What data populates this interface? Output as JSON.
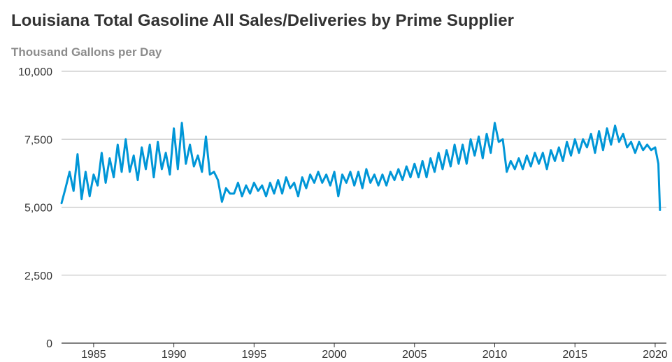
{
  "chart_data": {
    "type": "line",
    "title": "Louisiana Total Gasoline All Sales/Deliveries by Prime Supplier",
    "ylabel": "Thousand Gallons per Day",
    "xlabel": "",
    "ylim": [
      0,
      10000
    ],
    "xlim": [
      1983.0,
      2020.7
    ],
    "y_ticks": [
      0,
      2500,
      5000,
      7500,
      10000
    ],
    "y_tick_labels": [
      "0",
      "2,500",
      "5,000",
      "7,500",
      "10,000"
    ],
    "x_ticks": [
      1985,
      1990,
      1995,
      2000,
      2005,
      2010,
      2015,
      2020
    ],
    "x_tick_labels": [
      "1985",
      "1990",
      "1995",
      "2000",
      "2005",
      "2010",
      "2015",
      "2020"
    ],
    "grid": true,
    "series": [
      {
        "name": "Louisiana Total Gasoline All Sales/Deliveries by Prime Supplier",
        "color": "#0096d7",
        "x": [
          1983.0,
          1983.25,
          1983.5,
          1983.75,
          1984.0,
          1984.25,
          1984.5,
          1984.75,
          1985.0,
          1985.25,
          1985.5,
          1985.75,
          1986.0,
          1986.25,
          1986.5,
          1986.75,
          1987.0,
          1987.25,
          1987.5,
          1987.75,
          1988.0,
          1988.25,
          1988.5,
          1988.75,
          1989.0,
          1989.25,
          1989.5,
          1989.75,
          1990.0,
          1990.25,
          1990.5,
          1990.75,
          1991.0,
          1991.25,
          1991.5,
          1991.75,
          1992.0,
          1992.25,
          1992.5,
          1992.75,
          1993.0,
          1993.25,
          1993.5,
          1993.75,
          1994.0,
          1994.25,
          1994.5,
          1994.75,
          1995.0,
          1995.25,
          1995.5,
          1995.75,
          1996.0,
          1996.25,
          1996.5,
          1996.75,
          1997.0,
          1997.25,
          1997.5,
          1997.75,
          1998.0,
          1998.25,
          1998.5,
          1998.75,
          1999.0,
          1999.25,
          1999.5,
          1999.75,
          2000.0,
          2000.25,
          2000.5,
          2000.75,
          2001.0,
          2001.25,
          2001.5,
          2001.75,
          2002.0,
          2002.25,
          2002.5,
          2002.75,
          2003.0,
          2003.25,
          2003.5,
          2003.75,
          2004.0,
          2004.25,
          2004.5,
          2004.75,
          2005.0,
          2005.25,
          2005.5,
          2005.75,
          2006.0,
          2006.25,
          2006.5,
          2006.75,
          2007.0,
          2007.25,
          2007.5,
          2007.75,
          2008.0,
          2008.25,
          2008.5,
          2008.75,
          2009.0,
          2009.25,
          2009.5,
          2009.75,
          2010.0,
          2010.25,
          2010.5,
          2010.75,
          2011.0,
          2011.25,
          2011.5,
          2011.75,
          2012.0,
          2012.25,
          2012.5,
          2012.75,
          2013.0,
          2013.25,
          2013.5,
          2013.75,
          2014.0,
          2014.25,
          2014.5,
          2014.75,
          2015.0,
          2015.25,
          2015.5,
          2015.75,
          2016.0,
          2016.25,
          2016.5,
          2016.75,
          2017.0,
          2017.25,
          2017.5,
          2017.75,
          2018.0,
          2018.25,
          2018.5,
          2018.75,
          2019.0,
          2019.25,
          2019.5,
          2019.75,
          2020.0,
          2020.1,
          2020.2,
          2020.3
        ],
        "values": [
          5150,
          5700,
          6300,
          5600,
          6950,
          5300,
          6300,
          5400,
          6200,
          5800,
          7000,
          5900,
          6800,
          6100,
          7300,
          6300,
          7500,
          6300,
          6900,
          6000,
          7200,
          6400,
          7300,
          6100,
          7400,
          6400,
          7000,
          6200,
          7900,
          6400,
          8100,
          6600,
          7300,
          6500,
          6900,
          6300,
          7600,
          6200,
          6300,
          6000,
          5200,
          5700,
          5500,
          5500,
          5900,
          5400,
          5800,
          5500,
          5900,
          5600,
          5800,
          5400,
          5900,
          5500,
          6000,
          5500,
          6100,
          5700,
          5900,
          5400,
          6100,
          5700,
          6200,
          5900,
          6300,
          5900,
          6200,
          5800,
          6300,
          5400,
          6200,
          5900,
          6300,
          5800,
          6300,
          5700,
          6400,
          5900,
          6200,
          5800,
          6200,
          5800,
          6300,
          6000,
          6400,
          6000,
          6500,
          6100,
          6600,
          6100,
          6700,
          6100,
          6800,
          6300,
          7000,
          6400,
          7100,
          6500,
          7300,
          6600,
          7300,
          6600,
          7500,
          6900,
          7600,
          6800,
          7700,
          7000,
          8100,
          7400,
          7500,
          6300,
          6700,
          6400,
          6800,
          6400,
          6900,
          6500,
          7000,
          6600,
          7000,
          6400,
          7100,
          6700,
          7200,
          6700,
          7400,
          6900,
          7500,
          7000,
          7500,
          7200,
          7700,
          7000,
          7800,
          7100,
          7900,
          7300,
          8000,
          7400,
          7700,
          7200,
          7400,
          7000,
          7400,
          7100,
          7300,
          7100,
          7200,
          6900,
          6600,
          4900
        ]
      }
    ]
  }
}
